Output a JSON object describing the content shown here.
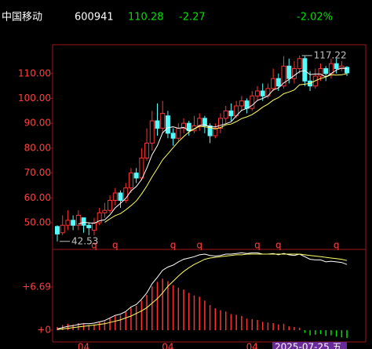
{
  "header": {
    "stock_name": "中国移动",
    "code": "600941",
    "price": 110.28,
    "change": -2.27,
    "change_pct": {
      "value": -2.02,
      "label": "-2.02%"
    }
  },
  "chart_data": [
    {
      "type": "candlestick",
      "up_color": "#ff3232",
      "down_color": "#54fcfc",
      "ylim": [
        39.3,
        121.6
      ],
      "yticks": [
        {
          "value": 50,
          "label": "50.00"
        },
        {
          "value": 60,
          "label": "60.00"
        },
        {
          "value": 70,
          "label": "70.00"
        },
        {
          "value": 80,
          "label": "80.00"
        },
        {
          "value": 90,
          "label": "90.00"
        },
        {
          "value": 100,
          "label": "100.00"
        },
        {
          "value": 110,
          "label": "110.00"
        }
      ],
      "categories": [
        null,
        null,
        null,
        null,
        null,
        "04",
        null,
        null,
        null,
        null,
        null,
        null,
        null,
        null,
        null,
        null,
        null,
        null,
        null,
        null,
        null,
        "04",
        null,
        null,
        null,
        null,
        null,
        null,
        null,
        null,
        null,
        null,
        null,
        null,
        null,
        null,
        null,
        "04",
        null,
        null,
        null,
        null,
        null,
        null,
        null,
        null,
        null,
        null,
        null,
        null,
        null,
        null,
        null,
        null,
        null,
        null
      ],
      "open": [
        48.5,
        46,
        49,
        51,
        49,
        52,
        49,
        47,
        50,
        54,
        55,
        59,
        62,
        59,
        64,
        70,
        68,
        76,
        82,
        91,
        88,
        93,
        86,
        84,
        88,
        90,
        87,
        89,
        92,
        89,
        85,
        88,
        92,
        95,
        93,
        97,
        99,
        96,
        101,
        103,
        101,
        104,
        108,
        105,
        113,
        108,
        112,
        116,
        107,
        105,
        109,
        112,
        110,
        114,
        112,
        112.5
      ],
      "high": [
        49,
        53,
        55,
        53,
        55,
        52,
        50,
        52,
        56,
        58,
        61,
        64,
        63,
        66,
        72,
        72,
        80,
        88,
        95,
        98,
        99,
        95,
        88,
        90,
        92,
        91,
        93,
        94,
        93,
        90,
        90,
        94,
        97,
        98,
        99,
        101,
        100,
        103,
        105,
        106,
        106,
        112,
        110,
        117,
        116,
        115,
        117.22,
        117,
        111,
        112,
        114,
        113,
        116,
        116,
        115,
        113
      ],
      "low": [
        42.53,
        45,
        47,
        47,
        47,
        46,
        45,
        45,
        49,
        52,
        54,
        57,
        56,
        58,
        62,
        66,
        67,
        75,
        79,
        85,
        86,
        84,
        81,
        83,
        86,
        85,
        86,
        87,
        86,
        82,
        84,
        86,
        90,
        91,
        92,
        95,
        94,
        95,
        99,
        99,
        100,
        103,
        103,
        104,
        106,
        106,
        110,
        105,
        103,
        104,
        107,
        107,
        108,
        110,
        111,
        109
      ],
      "close": [
        45.5,
        49,
        51,
        49,
        53,
        49,
        48,
        50,
        54,
        55,
        59,
        62,
        59,
        64,
        70,
        68,
        76,
        82,
        91,
        88,
        94,
        86,
        84,
        88,
        90,
        87,
        89,
        92,
        89,
        85,
        88,
        92,
        95,
        93,
        97,
        99,
        96,
        101,
        103,
        101,
        104,
        108,
        105,
        113,
        108,
        112,
        116,
        107,
        105,
        109,
        112,
        110,
        114,
        112,
        113,
        110.28
      ],
      "signals": [
        null,
        null,
        null,
        null,
        null,
        null,
        null,
        "q",
        null,
        null,
        null,
        "q",
        null,
        null,
        null,
        null,
        null,
        null,
        null,
        null,
        null,
        null,
        "q",
        null,
        null,
        null,
        null,
        "q",
        null,
        null,
        null,
        null,
        null,
        null,
        null,
        null,
        null,
        null,
        "q",
        null,
        null,
        null,
        "q",
        null,
        null,
        null,
        null,
        null,
        null,
        null,
        null,
        null,
        null,
        "q",
        null,
        null
      ],
      "high_annotation": 117.22,
      "low_annotation": 42.53,
      "cursor_date": "2025-07-25 五",
      "series": [
        {
          "color": "#ffffff",
          "values": [
            null,
            null,
            null,
            null,
            49.5,
            50.2,
            50,
            49.8,
            50.8,
            51.2,
            53.2,
            56,
            57.8,
            59.8,
            62.8,
            64.6,
            67.4,
            72,
            77.4,
            81,
            86.2,
            88.2,
            88.6,
            88,
            88.4,
            87,
            87.6,
            89.2,
            89.4,
            88.6,
            88.6,
            89.2,
            89.8,
            90.6,
            93,
            95.2,
            96,
            97.2,
            99.2,
            100,
            101,
            103.4,
            104.2,
            106.2,
            107.6,
            109.2,
            110.8,
            111.2,
            109.6,
            109.8,
            109.8,
            108.6,
            110,
            111.4,
            112.2,
            111.9
          ]
        },
        {
          "color": "#ffff66",
          "values": [
            null,
            null,
            null,
            null,
            null,
            null,
            null,
            null,
            null,
            50.2,
            51.6,
            52.9,
            53.7,
            55.2,
            56.9,
            58.8,
            61.6,
            64.8,
            68.5,
            71.8,
            75.3,
            77.7,
            80.2,
            82.6,
            84.6,
            86.5,
            87.8,
            88.8,
            88.6,
            88.3,
            87.7,
            88.3,
            89.4,
            89.7,
            90.7,
            91.9,
            92.6,
            93.5,
            94.9,
            96.5,
            97.7,
            99.3,
            100.3,
            101.9,
            102.6,
            103.4,
            105.5,
            105.7,
            106.1,
            107.1,
            108,
            108.6,
            109.5,
            109.4,
            109.5,
            110
          ]
        }
      ]
    },
    {
      "type": "indicator",
      "ylim": [
        -1.82,
        12.29
      ],
      "yticks": [
        {
          "value": 0,
          "label": "+0"
        },
        {
          "value": 6.69,
          "label": "+6.69"
        }
      ],
      "bar_up_color": "#ff3232",
      "bar_down_color": "#00e000",
      "bars": [
        0.5,
        0.8,
        1.0,
        0.9,
        1.1,
        1.0,
        0.8,
        0.9,
        1.2,
        1.4,
        1.8,
        2.2,
        2.3,
        2.8,
        3.5,
        3.8,
        4.6,
        5.5,
        6.8,
        7.5,
        8.0,
        7.6,
        7.0,
        6.6,
        6.3,
        5.8,
        5.4,
        5.2,
        4.6,
        3.9,
        3.4,
        3.1,
        2.9,
        2.5,
        2.4,
        2.2,
        1.8,
        1.7,
        1.6,
        1.3,
        1.2,
        1.1,
        0.9,
        1.0,
        0.6,
        0.5,
        0.4,
        -0.4,
        -0.8,
        -0.7,
        -0.6,
        -0.9,
        -0.8,
        -1.0,
        -1.1,
        -1.2
      ],
      "series": [
        {
          "color": "#ffffff",
          "values": [
            0.2,
            0.4,
            0.6,
            0.7,
            0.9,
            1.0,
            1.0,
            1.1,
            1.3,
            1.5,
            1.9,
            2.3,
            2.5,
            2.9,
            3.6,
            4.0,
            4.8,
            5.8,
            7.2,
            8.2,
            9.3,
            9.8,
            10.1,
            10.6,
            11.0,
            11.2,
            11.4,
            11.7,
            11.8,
            11.6,
            11.5,
            11.6,
            11.8,
            11.8,
            11.9,
            12.0,
            11.9,
            12.0,
            12.0,
            11.8,
            11.8,
            11.9,
            11.7,
            11.9,
            11.7,
            11.6,
            11.8,
            11.4,
            11.0,
            10.9,
            10.9,
            10.6,
            10.7,
            10.6,
            10.5,
            10.2
          ]
        },
        {
          "color": "#ffff66",
          "values": [
            0.1,
            0.2,
            0.3,
            0.4,
            0.5,
            0.6,
            0.7,
            0.8,
            0.9,
            1.0,
            1.2,
            1.4,
            1.6,
            1.9,
            2.2,
            2.6,
            3.0,
            3.5,
            4.2,
            4.9,
            5.8,
            6.8,
            7.6,
            8.4,
            9.1,
            9.7,
            10.2,
            10.6,
            11.0,
            11.2,
            11.3,
            11.4,
            11.5,
            11.6,
            11.7,
            11.7,
            11.8,
            11.8,
            11.8,
            11.8,
            11.8,
            11.8,
            11.8,
            11.8,
            11.8,
            11.8,
            11.8,
            11.7,
            11.6,
            11.5,
            11.4,
            11.3,
            11.2,
            11.1,
            11.0,
            10.8
          ]
        }
      ]
    }
  ]
}
